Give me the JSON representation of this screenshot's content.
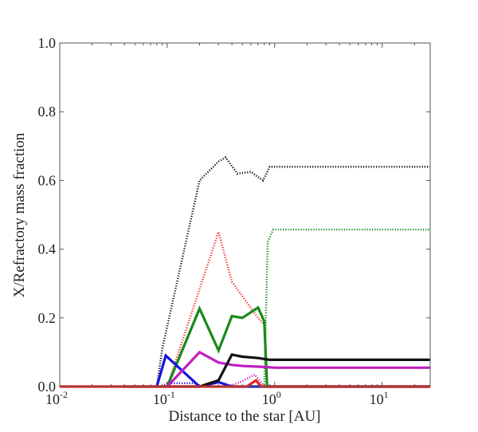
{
  "chart_data": {
    "type": "line",
    "title": "",
    "xlabel": "Distance to the star [AU]",
    "ylabel": "X/Refractory mass fraction",
    "xscale": "log",
    "xlim": [
      0.01,
      28
    ],
    "ylim": [
      0.0,
      1.0
    ],
    "grid": false,
    "yticks": [
      "0.0",
      "0.2",
      "0.4",
      "0.6",
      "0.8",
      "1.0"
    ],
    "yticks_values": [
      0,
      0.2,
      0.4,
      0.6,
      0.8,
      1.0
    ],
    "xticks": [
      {
        "value": 0.01,
        "base": "10",
        "exp": "-2"
      },
      {
        "value": 0.1,
        "base": "10",
        "exp": "-1"
      },
      {
        "value": 1,
        "base": "10",
        "exp": "0"
      },
      {
        "value": 10,
        "base": "10",
        "exp": "1"
      }
    ],
    "series": [
      {
        "name": "black-dotted",
        "color": "#111111",
        "style": "dotted",
        "x": [
          0.08,
          0.09,
          0.2,
          0.3,
          0.35,
          0.45,
          0.6,
          0.78,
          0.9,
          1.0,
          28
        ],
        "y": [
          0.0,
          0.11,
          0.6,
          0.655,
          0.667,
          0.62,
          0.625,
          0.6,
          0.64,
          0.64,
          0.64
        ]
      },
      {
        "name": "red-dotted",
        "color": "#ee3030",
        "style": "dotted",
        "x": [
          0.09,
          0.1,
          0.3,
          0.4,
          0.7,
          0.8,
          0.85,
          28
        ],
        "y": [
          0.0,
          0.0,
          0.45,
          0.305,
          0.2,
          0.18,
          0.0,
          0.0
        ]
      },
      {
        "name": "green-dotted",
        "color": "#1a8a1a",
        "style": "dotted",
        "x": [
          0.01,
          0.8,
          0.86,
          0.97,
          28
        ],
        "y": [
          0.0,
          0.0,
          0.42,
          0.457,
          0.457
        ]
      },
      {
        "name": "magenta-dotted",
        "color": "#c020c0",
        "style": "dotted",
        "x": [
          0.37,
          0.5,
          0.65,
          0.8,
          28
        ],
        "y": [
          0.0,
          0.015,
          0.035,
          0.0,
          0.0
        ]
      },
      {
        "name": "blue-dotted",
        "color": "#1515e0",
        "style": "dotted",
        "x": [
          0.09,
          0.1,
          0.18,
          0.2
        ],
        "y": [
          0.0,
          0.01,
          0.01,
          0.0
        ]
      },
      {
        "name": "green-solid",
        "color": "#1a8a1a",
        "style": "solid",
        "x": [
          0.1,
          0.2,
          0.3,
          0.4,
          0.5,
          0.7,
          0.8,
          0.85,
          28
        ],
        "y": [
          0.0,
          0.227,
          0.105,
          0.205,
          0.2,
          0.23,
          0.19,
          0.0,
          0.0
        ]
      },
      {
        "name": "blue-solid",
        "color": "#1515e0",
        "style": "solid",
        "x": [
          0.08,
          0.097,
          0.2,
          0.3,
          0.4,
          28
        ],
        "y": [
          0.0,
          0.09,
          0.0,
          0.013,
          0.0,
          0.0
        ]
      },
      {
        "name": "magenta-solid",
        "color": "#c020c0",
        "style": "solid",
        "x": [
          0.1,
          0.2,
          0.3,
          0.4,
          0.5,
          0.8,
          1.0,
          28
        ],
        "y": [
          0.0,
          0.1,
          0.07,
          0.063,
          0.06,
          0.057,
          0.055,
          0.055
        ]
      },
      {
        "name": "black-solid",
        "color": "#111111",
        "style": "solid",
        "x": [
          0.038,
          0.2,
          0.3,
          0.4,
          0.5,
          0.7,
          0.9,
          28
        ],
        "y": [
          0.0,
          0.0,
          0.018,
          0.093,
          0.087,
          0.083,
          0.078,
          0.078
        ]
      },
      {
        "name": "red-solid",
        "color": "#ee2020",
        "style": "solid",
        "x": [
          0.01,
          0.55,
          0.67,
          0.75,
          28
        ],
        "y": [
          0.0,
          0.0,
          0.018,
          0.0,
          0.0
        ]
      }
    ]
  }
}
